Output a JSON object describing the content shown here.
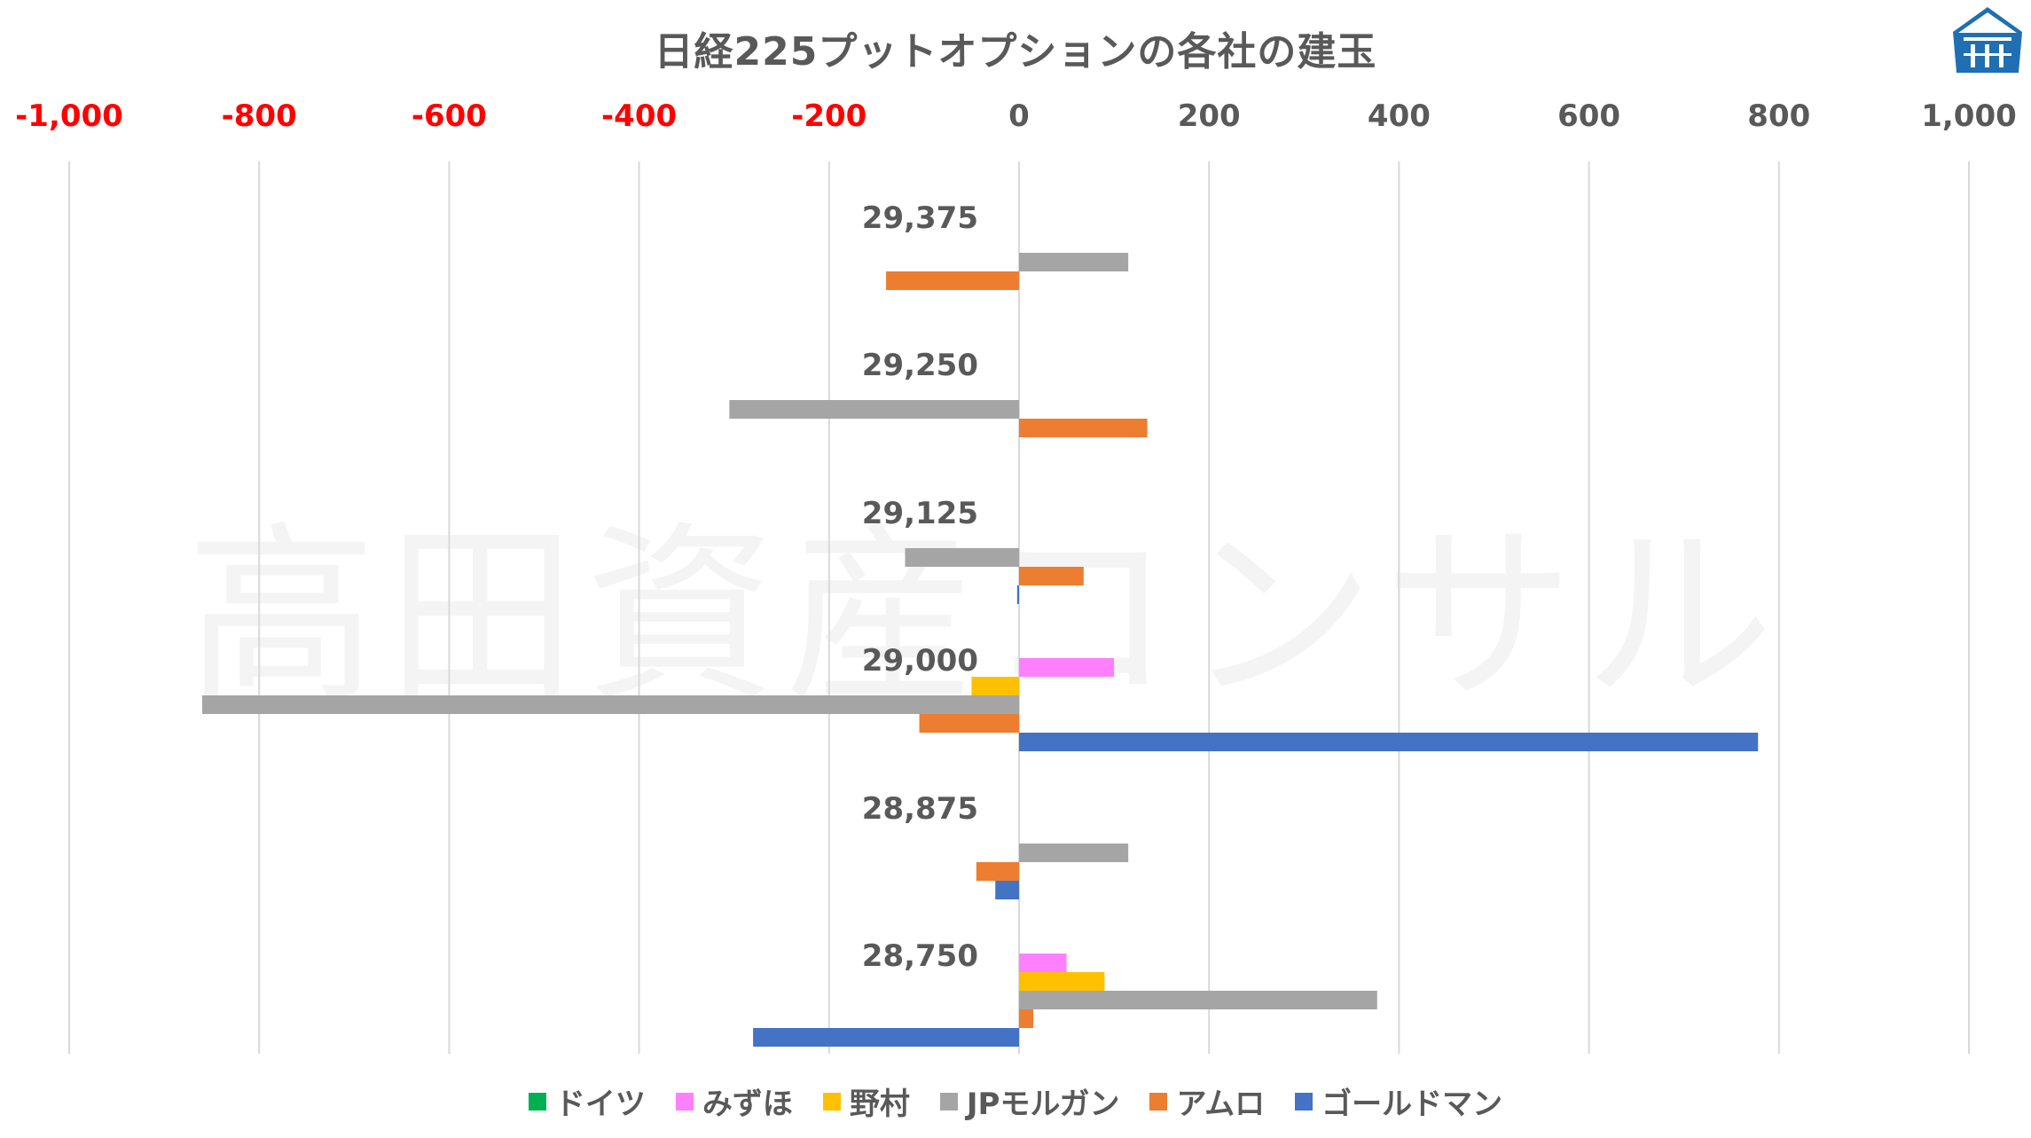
{
  "chart_data": {
    "type": "bar",
    "orientation": "horizontal",
    "title": "日経225プットオプションの各社の建玉",
    "watermark": "高田資産コンサル",
    "xlim": [
      -1000,
      1000
    ],
    "x_ticks": [
      -1000,
      -800,
      -600,
      -400,
      -200,
      0,
      200,
      400,
      600,
      800,
      1000
    ],
    "x_tick_labels": [
      "-1,000",
      "-800",
      "-600",
      "-400",
      "-200",
      "0",
      "200",
      "400",
      "600",
      "800",
      "1,000"
    ],
    "negative_tick_color": "#ff0000",
    "positive_tick_color": "#595959",
    "grid": true,
    "categories": [
      "29,375",
      "29,250",
      "29,125",
      "29,000",
      "28,875",
      "28,750"
    ],
    "series": [
      {
        "name": "ドイツ",
        "color": "#00b050",
        "values": [
          0,
          0,
          0,
          0,
          0,
          0
        ]
      },
      {
        "name": "みずほ",
        "color": "#ff80ff",
        "values": [
          0,
          0,
          0,
          100,
          0,
          50
        ]
      },
      {
        "name": "野村",
        "color": "#ffc000",
        "values": [
          0,
          0,
          0,
          -50,
          0,
          90
        ]
      },
      {
        "name": "JPモルガン",
        "color": "#a5a5a5",
        "values": [
          115,
          -305,
          -120,
          -860,
          115,
          377
        ]
      },
      {
        "name": "アムロ",
        "color": "#ed7d31",
        "values": [
          -140,
          135,
          68,
          -105,
          -45,
          15
        ]
      },
      {
        "name": "ゴールドマン",
        "color": "#4472c4",
        "values": [
          0,
          0,
          -2,
          778,
          -25,
          -280
        ]
      }
    ],
    "legend_position": "bottom"
  }
}
